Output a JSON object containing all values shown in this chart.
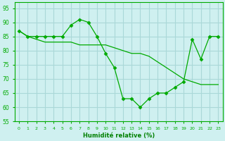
{
  "line1_x": [
    0,
    1,
    2,
    3,
    4,
    5,
    6,
    7,
    8,
    9,
    10,
    11,
    12,
    13,
    14,
    15,
    16,
    17,
    18,
    19,
    20,
    21,
    22,
    23
  ],
  "line1_y": [
    87,
    85,
    85,
    85,
    85,
    85,
    89,
    91,
    90,
    85,
    79,
    74,
    63,
    63,
    60,
    63,
    65,
    65,
    67,
    69,
    84,
    77,
    85,
    85
  ],
  "line2_x": [
    0,
    1,
    2,
    3,
    4,
    5,
    6,
    7,
    8,
    9,
    10,
    11,
    12,
    13,
    14,
    15,
    16,
    17,
    18,
    19,
    20,
    21,
    22,
    23
  ],
  "line2_y": [
    87,
    85,
    84,
    83,
    83,
    83,
    83,
    82,
    82,
    82,
    82,
    81,
    80,
    79,
    79,
    78,
    76,
    74,
    72,
    70,
    69,
    68,
    68,
    68
  ],
  "line_color": "#00aa00",
  "marker": "D",
  "marker_size": 2.5,
  "bg_color": "#cff0f0",
  "grid_color": "#aad8d8",
  "xlabel": "Humidité relative (%)",
  "xlabel_color": "#008000",
  "xlim": [
    -0.5,
    23.5
  ],
  "ylim": [
    55,
    97
  ],
  "yticks": [
    55,
    60,
    65,
    70,
    75,
    80,
    85,
    90,
    95
  ],
  "xticks": [
    0,
    1,
    2,
    3,
    4,
    5,
    6,
    7,
    8,
    9,
    10,
    11,
    12,
    13,
    14,
    15,
    16,
    17,
    18,
    19,
    20,
    21,
    22,
    23
  ]
}
